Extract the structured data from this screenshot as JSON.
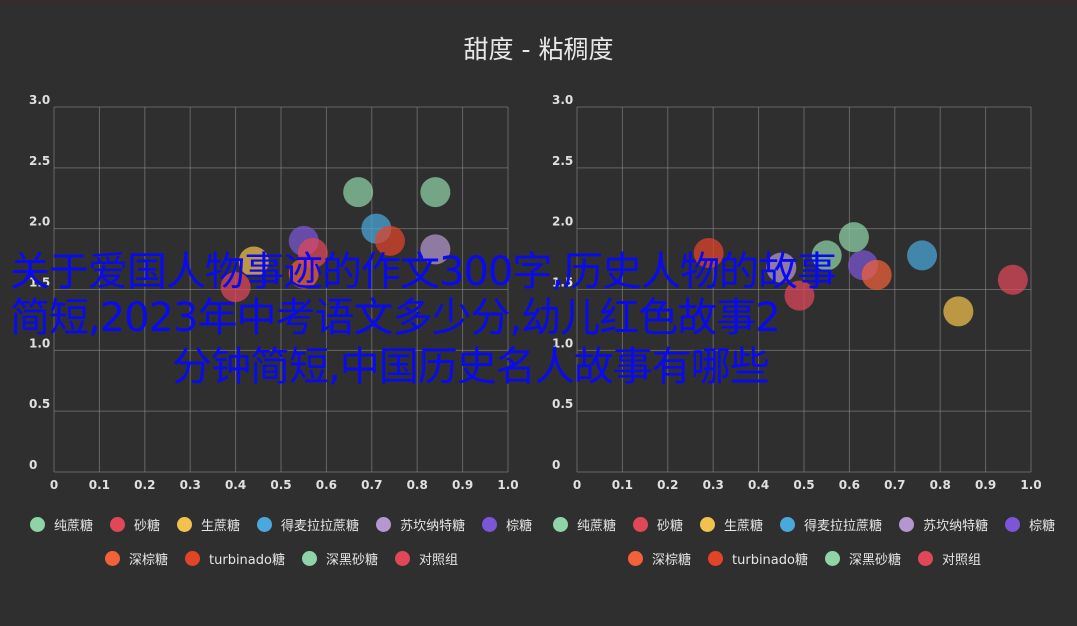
{
  "title": "甜度 - 粘稠度",
  "overlay_text": {
    "line1": "关于爱国人物事迹的作文300字,历史人物的故事",
    "line2": "简短,2023年中考语文多少分,幼儿红色故事2",
    "line3": "分钟简短,中国历史名人故事有哪些"
  },
  "chart_data": [
    {
      "type": "scatter",
      "title": "",
      "xlim": [
        0,
        1.0
      ],
      "ylim": [
        0,
        3.0
      ],
      "xticks": [
        "0",
        "0.1",
        "0.2",
        "0.3",
        "0.4",
        "0.5",
        "0.6",
        "0.7",
        "0.8",
        "0.9",
        "1.0"
      ],
      "yticks": [
        "0",
        "0.5",
        "1.0",
        "1.5",
        "2.0",
        "2.5",
        "3.0"
      ],
      "grid": true,
      "legend_position": "bottom",
      "series": [
        {
          "name": "纯蔗糖",
          "color": "#8fd3a8",
          "points": [
            [
              0.67,
              2.3
            ]
          ]
        },
        {
          "name": "砂糖",
          "color": "#e0485a",
          "points": [
            [
              0.4,
              1.52
            ]
          ]
        },
        {
          "name": "生蔗糖",
          "color": "#f2c14e",
          "points": [
            [
              0.44,
              1.73
            ]
          ]
        },
        {
          "name": "得麦拉拉蔗糖",
          "color": "#4aa8dc",
          "points": [
            [
              0.71,
              2.0
            ]
          ]
        },
        {
          "name": "苏坎纳特糖",
          "color": "#b497cf",
          "points": [
            [
              0.84,
              1.83
            ]
          ]
        },
        {
          "name": "棕糖",
          "color": "#7b56d6",
          "points": [
            [
              0.55,
              1.9
            ]
          ]
        },
        {
          "name": "深棕糖",
          "color": "#f2613a",
          "points": [
            [
              0.55,
              1.63
            ]
          ]
        },
        {
          "name": "turbinado糖",
          "color": "#e2442a",
          "points": [
            [
              0.74,
              1.9
            ]
          ]
        },
        {
          "name": "深黑砂糖",
          "color": "#8fd3a8",
          "points": [
            [
              0.84,
              2.3
            ]
          ]
        },
        {
          "name": "对照组",
          "color": "#e0485a",
          "points": [
            [
              0.57,
              1.8
            ]
          ]
        }
      ]
    },
    {
      "type": "scatter",
      "title": "",
      "xlim": [
        0,
        1.0
      ],
      "ylim": [
        0,
        3.0
      ],
      "xticks": [
        "0",
        "0.1",
        "0.2",
        "0.3",
        "0.4",
        "0.5",
        "0.6",
        "0.7",
        "0.8",
        "0.9",
        "1.0"
      ],
      "yticks": [
        "0",
        "0.5",
        "1.0",
        "1.5",
        "2.0",
        "2.5",
        "3.0"
      ],
      "grid": true,
      "legend_position": "bottom",
      "series": [
        {
          "name": "纯蔗糖",
          "color": "#8fd3a8",
          "points": [
            [
              0.55,
              1.78
            ]
          ]
        },
        {
          "name": "砂糖",
          "color": "#e0485a",
          "points": [
            [
              0.49,
              1.45
            ]
          ]
        },
        {
          "name": "生蔗糖",
          "color": "#f2c14e",
          "points": [
            [
              0.84,
              1.32
            ]
          ]
        },
        {
          "name": "得麦拉拉蔗糖",
          "color": "#4aa8dc",
          "points": [
            [
              0.76,
              1.78
            ]
          ]
        },
        {
          "name": "苏坎纳特糖",
          "color": "#b497cf",
          "points": [
            [
              0.45,
              1.68
            ]
          ]
        },
        {
          "name": "棕糖",
          "color": "#7b56d6",
          "points": [
            [
              0.63,
              1.7
            ]
          ]
        },
        {
          "name": "深棕糖",
          "color": "#f2613a",
          "points": [
            [
              0.66,
              1.62
            ]
          ]
        },
        {
          "name": "turbinado糖",
          "color": "#e2442a",
          "points": [
            [
              0.29,
              1.8
            ]
          ]
        },
        {
          "name": "深黑砂糖",
          "color": "#8fd3a8",
          "points": [
            [
              0.61,
              1.93
            ]
          ]
        },
        {
          "name": "对照组",
          "color": "#e0485a",
          "points": [
            [
              0.96,
              1.58
            ]
          ]
        }
      ]
    }
  ]
}
